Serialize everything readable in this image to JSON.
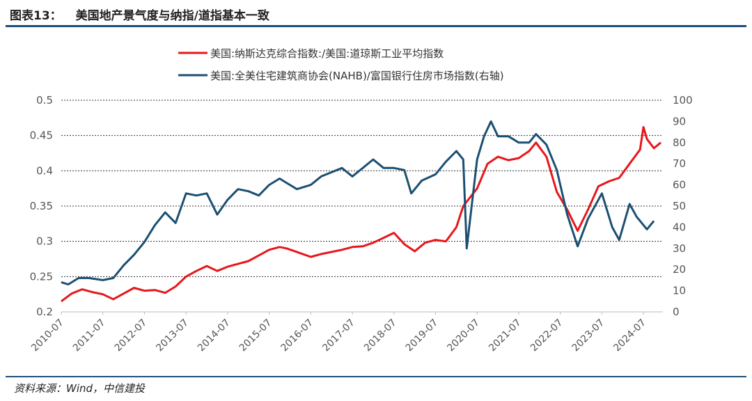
{
  "header": {
    "figure_no": "图表13：",
    "title": "美国地产景气度与纳指/道指基本一致"
  },
  "footer": {
    "source": "资料来源：Wind，中信建投"
  },
  "chart_data": {
    "type": "line",
    "legend_position": "top-center",
    "grid": "horizontal dashed",
    "y_left": {
      "ylim": [
        0.2,
        0.5
      ],
      "ticks": [
        "0.2",
        "0.25",
        "0.3",
        "0.35",
        "0.4",
        "0.45",
        "0.5"
      ]
    },
    "y_right": {
      "ylim": [
        0,
        100
      ],
      "ticks": [
        "0",
        "10",
        "20",
        "30",
        "40",
        "50",
        "60",
        "70",
        "80",
        "90",
        "100"
      ]
    },
    "x_ticks": [
      "2010-07",
      "2011-07",
      "2012-07",
      "2013-07",
      "2014-07",
      "2015-07",
      "2016-07",
      "2017-07",
      "2018-07",
      "2019-07",
      "2020-07",
      "2021-07",
      "2022-07",
      "2023-07",
      "2024-07"
    ],
    "series": [
      {
        "name": "美国:纳斯达克综合指数:/美国:道琼斯工业平均指数",
        "axis": "left",
        "color": "#e8161b",
        "points": [
          [
            "2010-07",
            0.215
          ],
          [
            "2010-10",
            0.226
          ],
          [
            "2011-01",
            0.232
          ],
          [
            "2011-04",
            0.228
          ],
          [
            "2011-07",
            0.225
          ],
          [
            "2011-10",
            0.218
          ],
          [
            "2012-01",
            0.226
          ],
          [
            "2012-04",
            0.234
          ],
          [
            "2012-07",
            0.23
          ],
          [
            "2012-10",
            0.231
          ],
          [
            "2013-01",
            0.227
          ],
          [
            "2013-04",
            0.236
          ],
          [
            "2013-07",
            0.25
          ],
          [
            "2013-10",
            0.258
          ],
          [
            "2014-01",
            0.265
          ],
          [
            "2014-04",
            0.258
          ],
          [
            "2014-07",
            0.264
          ],
          [
            "2014-10",
            0.268
          ],
          [
            "2015-01",
            0.272
          ],
          [
            "2015-04",
            0.28
          ],
          [
            "2015-07",
            0.288
          ],
          [
            "2015-10",
            0.292
          ],
          [
            "2015-12",
            0.29
          ],
          [
            "2016-03",
            0.285
          ],
          [
            "2016-07",
            0.278
          ],
          [
            "2016-10",
            0.282
          ],
          [
            "2017-01",
            0.285
          ],
          [
            "2017-04",
            0.288
          ],
          [
            "2017-07",
            0.292
          ],
          [
            "2017-10",
            0.293
          ],
          [
            "2018-01",
            0.298
          ],
          [
            "2018-04",
            0.305
          ],
          [
            "2018-07",
            0.312
          ],
          [
            "2018-10",
            0.296
          ],
          [
            "2019-01",
            0.286
          ],
          [
            "2019-04",
            0.298
          ],
          [
            "2019-07",
            0.302
          ],
          [
            "2019-10",
            0.3
          ],
          [
            "2020-01",
            0.32
          ],
          [
            "2020-03",
            0.35
          ],
          [
            "2020-07",
            0.375
          ],
          [
            "2020-10",
            0.41
          ],
          [
            "2021-01",
            0.42
          ],
          [
            "2021-04",
            0.415
          ],
          [
            "2021-07",
            0.418
          ],
          [
            "2021-10",
            0.428
          ],
          [
            "2021-12",
            0.44
          ],
          [
            "2022-03",
            0.42
          ],
          [
            "2022-06",
            0.37
          ],
          [
            "2022-09",
            0.345
          ],
          [
            "2022-12",
            0.315
          ],
          [
            "2023-03",
            0.345
          ],
          [
            "2023-06",
            0.378
          ],
          [
            "2023-09",
            0.385
          ],
          [
            "2023-12",
            0.39
          ],
          [
            "2024-03",
            0.41
          ],
          [
            "2024-06",
            0.43
          ],
          [
            "2024-07",
            0.462
          ],
          [
            "2024-08",
            0.445
          ],
          [
            "2024-10",
            0.432
          ],
          [
            "2024-12",
            0.44
          ]
        ]
      },
      {
        "name": "美国:全美住宅建筑商协会(NAHB)/富国银行住房市场指数(右轴)",
        "axis": "right",
        "color": "#1b4f72",
        "points": [
          [
            "2010-07",
            14
          ],
          [
            "2010-09",
            13
          ],
          [
            "2010-12",
            16
          ],
          [
            "2011-03",
            16
          ],
          [
            "2011-07",
            15
          ],
          [
            "2011-10",
            16
          ],
          [
            "2012-01",
            22
          ],
          [
            "2012-04",
            27
          ],
          [
            "2012-07",
            33
          ],
          [
            "2012-10",
            41
          ],
          [
            "2013-01",
            47
          ],
          [
            "2013-04",
            42
          ],
          [
            "2013-07",
            56
          ],
          [
            "2013-10",
            55
          ],
          [
            "2014-01",
            56
          ],
          [
            "2014-04",
            46
          ],
          [
            "2014-07",
            53
          ],
          [
            "2014-10",
            58
          ],
          [
            "2015-01",
            57
          ],
          [
            "2015-04",
            55
          ],
          [
            "2015-07",
            60
          ],
          [
            "2015-10",
            63
          ],
          [
            "2015-12",
            61
          ],
          [
            "2016-03",
            58
          ],
          [
            "2016-07",
            60
          ],
          [
            "2016-10",
            64
          ],
          [
            "2017-01",
            66
          ],
          [
            "2017-04",
            68
          ],
          [
            "2017-07",
            64
          ],
          [
            "2017-10",
            68
          ],
          [
            "2018-01",
            72
          ],
          [
            "2018-04",
            68
          ],
          [
            "2018-07",
            68
          ],
          [
            "2018-10",
            67
          ],
          [
            "2018-12",
            56
          ],
          [
            "2019-03",
            62
          ],
          [
            "2019-07",
            65
          ],
          [
            "2019-10",
            71
          ],
          [
            "2020-01",
            76
          ],
          [
            "2020-03",
            72
          ],
          [
            "2020-04",
            30
          ],
          [
            "2020-07",
            72
          ],
          [
            "2020-09",
            83
          ],
          [
            "2020-11",
            90
          ],
          [
            "2021-01",
            83
          ],
          [
            "2021-04",
            83
          ],
          [
            "2021-07",
            80
          ],
          [
            "2021-10",
            80
          ],
          [
            "2021-12",
            84
          ],
          [
            "2022-03",
            79
          ],
          [
            "2022-06",
            67
          ],
          [
            "2022-09",
            46
          ],
          [
            "2022-12",
            31
          ],
          [
            "2023-03",
            44
          ],
          [
            "2023-07",
            56
          ],
          [
            "2023-10",
            40
          ],
          [
            "2023-12",
            34
          ],
          [
            "2024-03",
            51
          ],
          [
            "2024-05",
            45
          ],
          [
            "2024-08",
            39
          ],
          [
            "2024-10",
            43
          ]
        ]
      }
    ]
  }
}
